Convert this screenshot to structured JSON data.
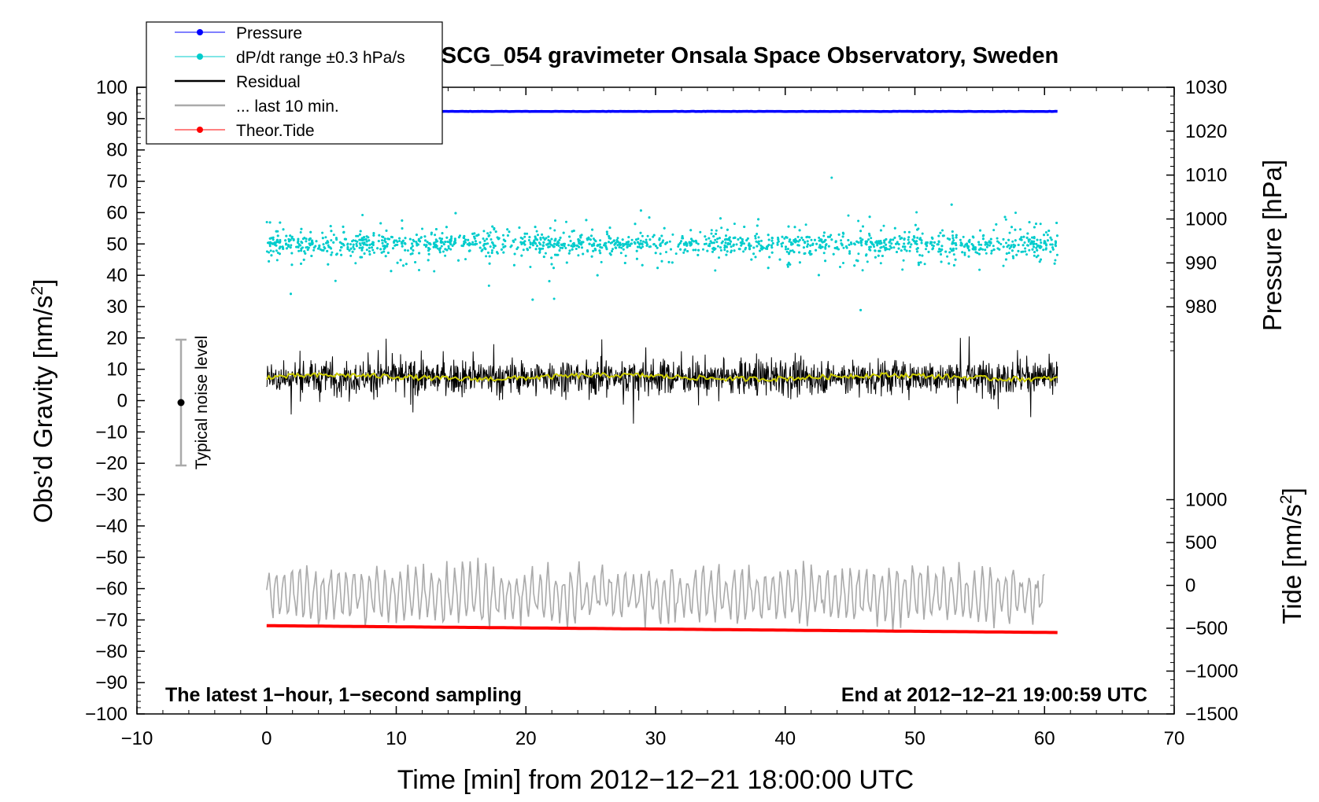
{
  "chart_data": {
    "type": "line",
    "title": "SCG_054 gravimeter Onsala Space Observatory, Sweden",
    "xlabel": "Time [min] from 2012−12−21 18:00:00 UTC",
    "ylabel_left": "Obs’d Gravity [nm/s",
    "ylabel_left_sup": "2",
    "ylabel_left_end": "]",
    "ylabel_right_pressure": "Pressure [hPa]",
    "ylabel_right_tide": "Tide [nm/s",
    "ylabel_right_tide_sup": "2",
    "ylabel_right_tide_end": "]",
    "xlim": [
      -10,
      70
    ],
    "ylim_left": [
      -100,
      100
    ],
    "pressure_axis": {
      "ticks": [
        980,
        990,
        1000,
        1010,
        1020,
        1030
      ],
      "range": [
        970,
        1030
      ]
    },
    "tide_axis": {
      "ticks": [
        -1500,
        -1000,
        -500,
        0,
        500,
        1000
      ],
      "range": [
        -1500,
        1500
      ]
    },
    "x_ticks": [
      -10,
      0,
      10,
      20,
      30,
      40,
      50,
      60,
      70
    ],
    "x_tick_labels": [
      "−10",
      "0",
      "10",
      "20",
      "30",
      "40",
      "50",
      "60",
      "70"
    ],
    "y_ticks_left": [
      100,
      90,
      80,
      70,
      60,
      50,
      40,
      30,
      20,
      10,
      0,
      -10,
      -20,
      -30,
      -40,
      -50,
      -60,
      -70,
      -80,
      -90,
      -100
    ],
    "y_tick_labels_left": [
      "100",
      "90",
      "80",
      "70",
      "60",
      "50",
      "40",
      "30",
      "20",
      "10",
      "0",
      "−10",
      "−20",
      "−30",
      "−40",
      "−50",
      "−60",
      "−70",
      "−80",
      "−90",
      "−100"
    ],
    "pressure_tick_labels": [
      "980",
      "990",
      "1000",
      "1010",
      "1020",
      "1030"
    ],
    "tide_tick_labels": [
      "−1500",
      "−1000",
      "−500",
      "0",
      "500",
      "1000"
    ],
    "series": [
      {
        "name": "Pressure",
        "color": "#0000ff",
        "axis": "pressure",
        "x": [
          0,
          61
        ],
        "values": [
          1024.5,
          1024.5
        ]
      },
      {
        "name": "dP/dt range ±0.3 hPa/s",
        "color": "#00cccc",
        "axis": "left",
        "kind": "scatter",
        "center": 50,
        "x_range": [
          0,
          61
        ]
      },
      {
        "name": "Residual",
        "color": "#000000",
        "axis": "left",
        "center": 7.5,
        "x_range": [
          0,
          61
        ]
      },
      {
        "name": "... last 10 min.",
        "color": "#aaaaaa",
        "axis": "left",
        "center": -62,
        "x_range": [
          0,
          60
        ]
      },
      {
        "name": "Theor.Tide",
        "color": "#ff0000",
        "axis": "tide",
        "x": [
          0,
          61
        ],
        "values": [
          -470,
          -550
        ]
      }
    ],
    "running_mean": {
      "color": "#cccc00",
      "center": 7.5
    },
    "legend": {
      "position": "top-left"
    },
    "noise_indicator": {
      "label": "Typical noise level",
      "x": -7,
      "center": 0,
      "range": [
        -20,
        20
      ]
    },
    "annotation_left": "The latest 1−hour, 1−second sampling",
    "annotation_right": "End at 2012−12−21 19:00:59 UTC"
  }
}
